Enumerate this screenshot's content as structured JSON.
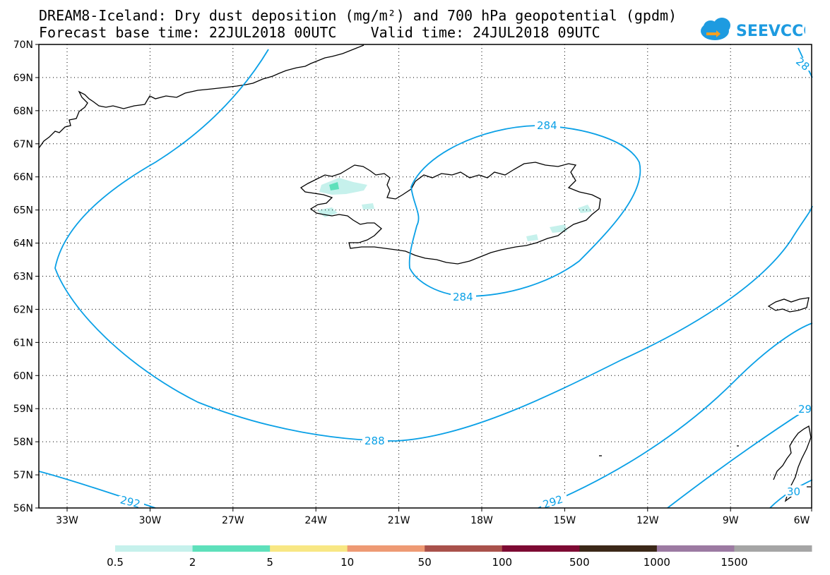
{
  "header": {
    "title_line1": "DREAM8-Iceland: Dry dust deposition (mg/m²) and 700 hPa geopotential (gpdm)",
    "title_line2": "Forecast base time: 22JUL2018 00UTC    Valid time: 24JUL2018 09UTC"
  },
  "logo": {
    "text": "SEEVCCC",
    "color": "#1e9be0"
  },
  "map": {
    "lat_ticks": [
      "70N",
      "69N",
      "68N",
      "67N",
      "66N",
      "65N",
      "64N",
      "63N",
      "62N",
      "61N",
      "60N",
      "59N",
      "58N",
      "57N",
      "56N"
    ],
    "lon_ticks": [
      "33W",
      "30W",
      "27W",
      "24W",
      "21W",
      "18W",
      "15W",
      "12W",
      "9W",
      "6W"
    ],
    "contour_color": "#0aa0e6",
    "contour_labels": [
      "284",
      "284",
      "288",
      "292",
      "292",
      "28",
      "29",
      "30"
    ]
  },
  "legend": {
    "values": [
      "0.5",
      "2",
      "5",
      "10",
      "50",
      "100",
      "500",
      "1000",
      "1500"
    ],
    "colors": [
      "#c6f1ec",
      "#5ee0bb",
      "#f8e784",
      "#ee9a74",
      "#a9514b",
      "#7d0a33",
      "#3b2818",
      "#9c7aa2",
      "#a5a5a5"
    ]
  }
}
